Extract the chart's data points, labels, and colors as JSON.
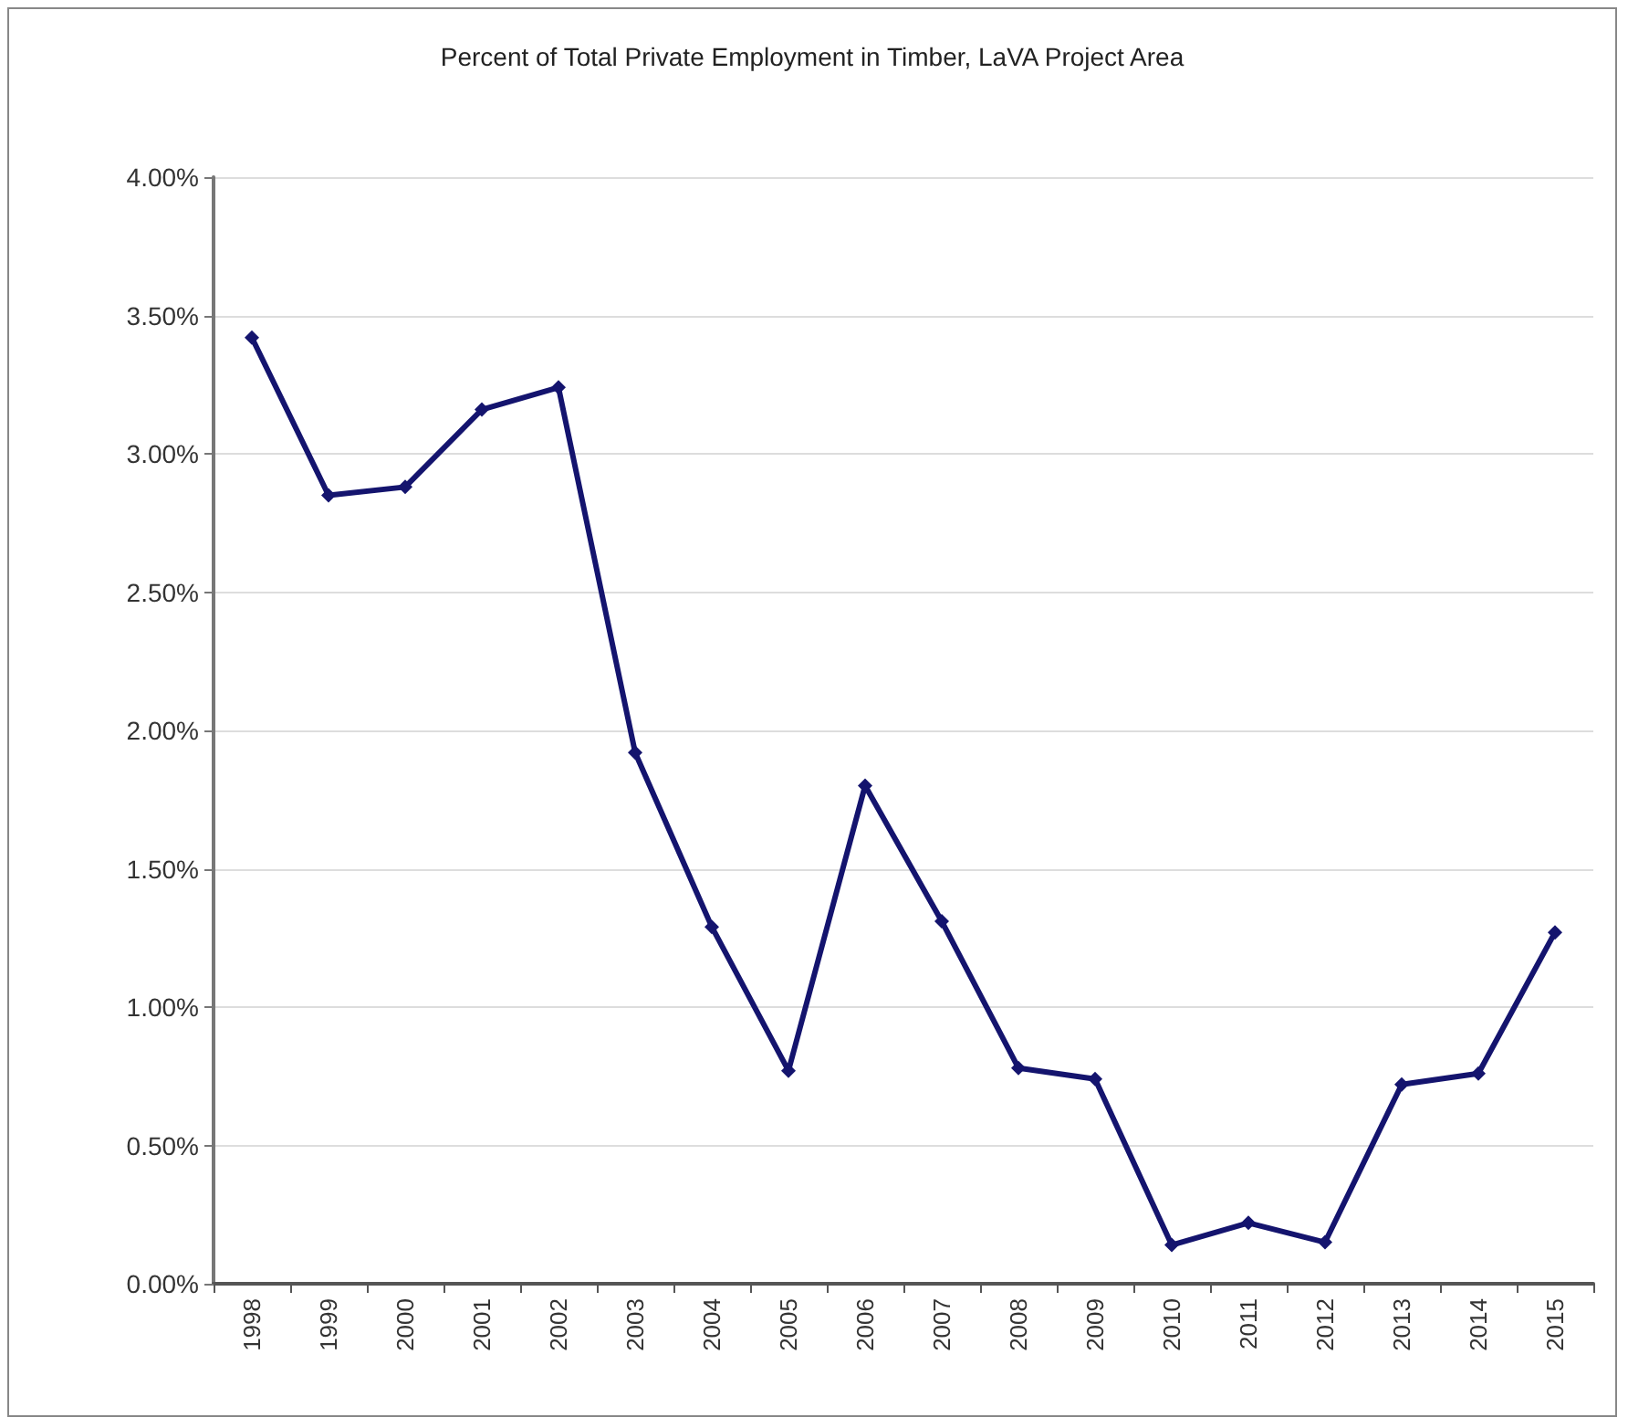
{
  "chart_data": {
    "type": "line",
    "title": "Percent of Total Private Employment in Timber, LaVA Project Area",
    "categories": [
      "1998",
      "1999",
      "2000",
      "2001",
      "2002",
      "2003",
      "2004",
      "2005",
      "2006",
      "2007",
      "2008",
      "2009",
      "2010",
      "2011",
      "2012",
      "2013",
      "2014",
      "2015"
    ],
    "values": [
      3.42,
      2.85,
      2.88,
      3.16,
      3.24,
      1.92,
      1.29,
      0.77,
      1.8,
      1.31,
      0.78,
      0.74,
      0.14,
      0.22,
      0.15,
      0.72,
      0.76,
      1.27
    ],
    "color": "#14146e",
    "marker": "diamond",
    "line_style": "solid",
    "grid": "y",
    "ylim": [
      0,
      4
    ],
    "yticks": [
      {
        "value": 0,
        "label": "0.00%"
      },
      {
        "value": 0.5,
        "label": "0.50%"
      },
      {
        "value": 1,
        "label": "1.00%"
      },
      {
        "value": 1.5,
        "label": "1.50%"
      },
      {
        "value": 2,
        "label": "2.00%"
      },
      {
        "value": 2.5,
        "label": "2.50%"
      },
      {
        "value": 3,
        "label": "3.00%"
      },
      {
        "value": 3.5,
        "label": "3.50%"
      },
      {
        "value": 4,
        "label": "4.00%"
      }
    ]
  }
}
